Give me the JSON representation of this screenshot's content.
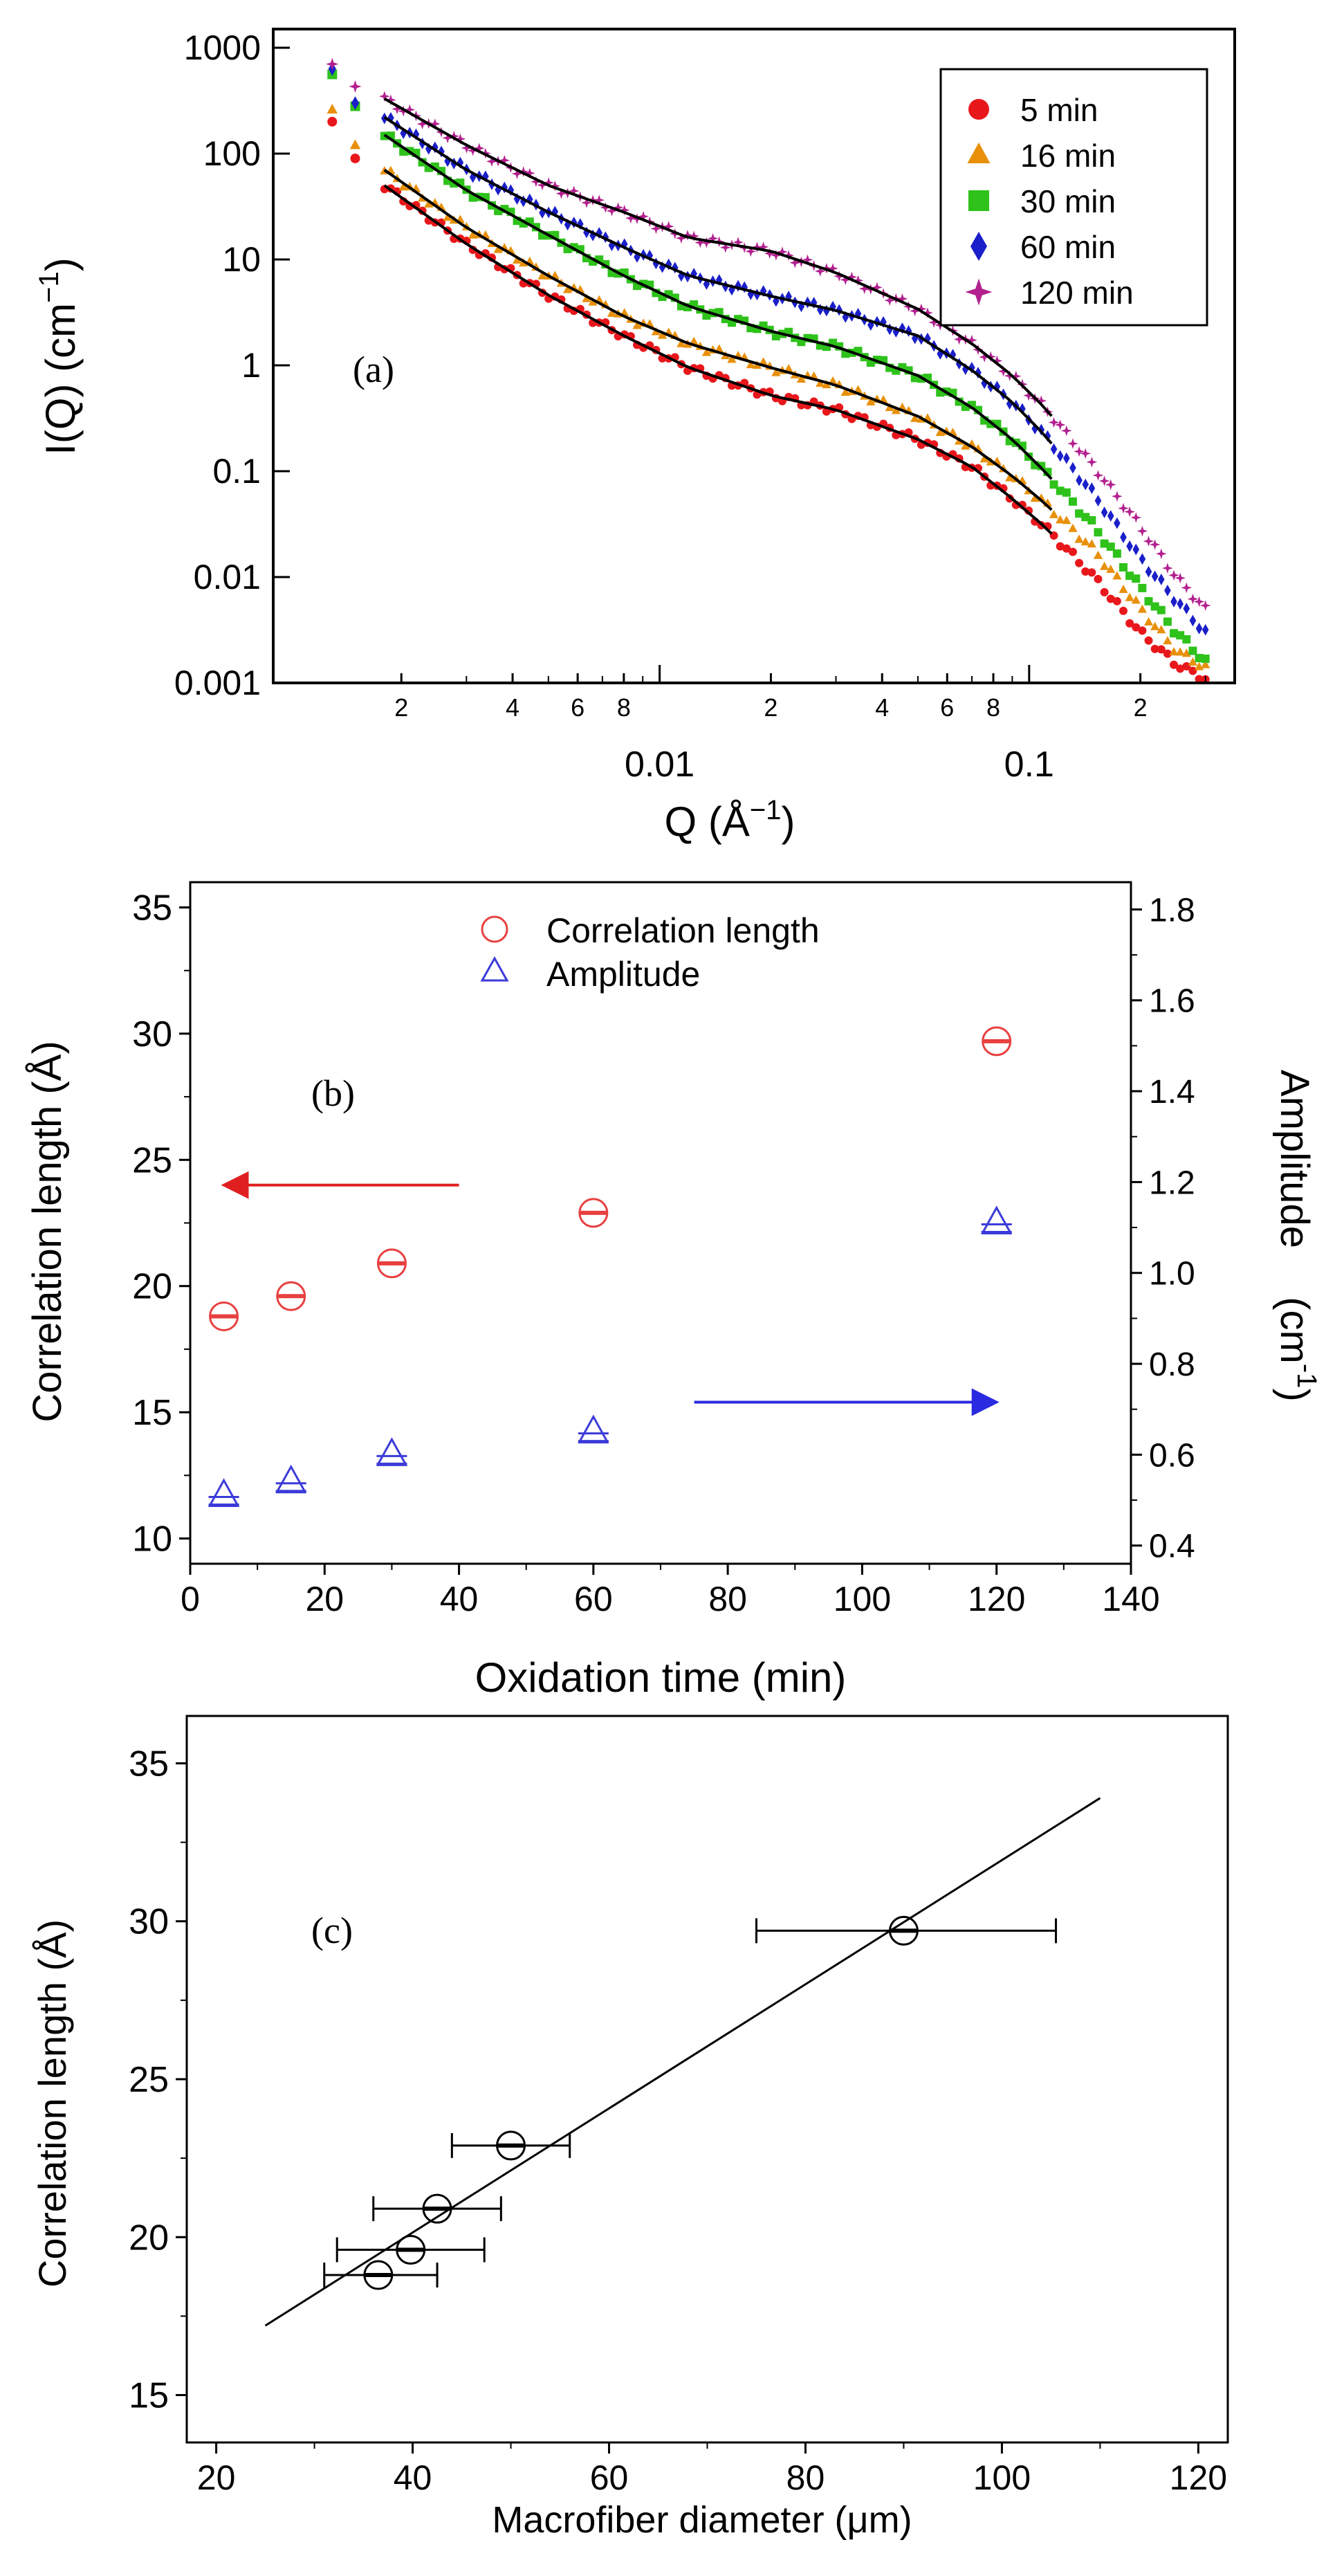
{
  "chart_data": [
    {
      "panel_label": "(a)",
      "type": "scatter",
      "xscale": "log",
      "yscale": "log",
      "xlabel": "Q (Å",
      "xlabel_sup": "−1",
      "xlabel_close": ")",
      "ylabel": "I(Q) (cm",
      "ylabel_sup": "−1",
      "ylabel_close": ")",
      "xlim": [
        0.0009,
        0.36
      ],
      "ylim": [
        0.001,
        1500
      ],
      "x_major_ticks": [
        {
          "value": 0.01,
          "label": "0.01"
        },
        {
          "value": 0.1,
          "label": "0.1"
        }
      ],
      "x_minor_ticks": [
        {
          "value": 0.002,
          "label": "2"
        },
        {
          "value": 0.004,
          "label": "4"
        },
        {
          "value": 0.006,
          "label": "6"
        },
        {
          "value": 0.008,
          "label": "8"
        },
        {
          "value": 0.02,
          "label": "2"
        },
        {
          "value": 0.04,
          "label": "4"
        },
        {
          "value": 0.06,
          "label": "6"
        },
        {
          "value": 0.08,
          "label": "8"
        },
        {
          "value": 0.2,
          "label": "2"
        }
      ],
      "y_ticks": [
        {
          "value": 1000,
          "label": "1000"
        },
        {
          "value": 100,
          "label": "100"
        },
        {
          "value": 10,
          "label": "10"
        },
        {
          "value": 1,
          "label": "1"
        },
        {
          "value": 0.1,
          "label": "0.1"
        },
        {
          "value": 0.01,
          "label": "0.01"
        },
        {
          "value": 0.001,
          "label": "0.001"
        }
      ],
      "legend_position": "top-right",
      "fit_range": [
        0.0018,
        0.115
      ],
      "series": [
        {
          "name": "5 min",
          "marker": "circle",
          "color": "#e8171b",
          "data": [
            [
              0.0013,
              200
            ],
            [
              0.0015,
              90
            ],
            [
              0.0018,
              50
            ],
            [
              0.003,
              14
            ],
            [
              0.005,
              4.6
            ],
            [
              0.008,
              1.9
            ],
            [
              0.012,
              0.95
            ],
            [
              0.02,
              0.52
            ],
            [
              0.03,
              0.38
            ],
            [
              0.05,
              0.2
            ],
            [
              0.07,
              0.11
            ],
            [
              0.09,
              0.055
            ],
            [
              0.11,
              0.03
            ],
            [
              0.15,
              0.01
            ],
            [
              0.2,
              0.003
            ],
            [
              0.25,
              0.0015
            ],
            [
              0.3,
              0.0011
            ]
          ]
        },
        {
          "name": "16 min",
          "marker": "triangle",
          "color": "#e8900a",
          "data": [
            [
              0.0013,
              260
            ],
            [
              0.0015,
              120
            ],
            [
              0.0018,
              70
            ],
            [
              0.003,
              20
            ],
            [
              0.005,
              7
            ],
            [
              0.008,
              2.9
            ],
            [
              0.012,
              1.6
            ],
            [
              0.02,
              0.95
            ],
            [
              0.03,
              0.65
            ],
            [
              0.05,
              0.33
            ],
            [
              0.07,
              0.17
            ],
            [
              0.09,
              0.09
            ],
            [
              0.11,
              0.05
            ],
            [
              0.15,
              0.018
            ],
            [
              0.2,
              0.005
            ],
            [
              0.25,
              0.002
            ],
            [
              0.3,
              0.0014
            ]
          ]
        },
        {
          "name": "30 min",
          "marker": "square",
          "color": "#2ec21b",
          "data": [
            [
              0.0013,
              560
            ],
            [
              0.0015,
              280
            ],
            [
              0.0018,
              150
            ],
            [
              0.003,
              45
            ],
            [
              0.005,
              17
            ],
            [
              0.008,
              7
            ],
            [
              0.012,
              3.6
            ],
            [
              0.02,
              2.1
            ],
            [
              0.03,
              1.5
            ],
            [
              0.05,
              0.8
            ],
            [
              0.07,
              0.4
            ],
            [
              0.09,
              0.2
            ],
            [
              0.11,
              0.1
            ],
            [
              0.15,
              0.03
            ],
            [
              0.2,
              0.008
            ],
            [
              0.25,
              0.003
            ],
            [
              0.3,
              0.0016
            ]
          ]
        },
        {
          "name": "60 min",
          "marker": "diamond",
          "color": "#1a1fc9",
          "data": [
            [
              0.0013,
              630
            ],
            [
              0.0015,
              300
            ],
            [
              0.0018,
              220
            ],
            [
              0.003,
              70
            ],
            [
              0.005,
              28
            ],
            [
              0.008,
              13
            ],
            [
              0.012,
              7
            ],
            [
              0.02,
              4.5
            ],
            [
              0.03,
              3.3
            ],
            [
              0.05,
              1.9
            ],
            [
              0.07,
              0.9
            ],
            [
              0.09,
              0.45
            ],
            [
              0.11,
              0.22
            ],
            [
              0.15,
              0.06
            ],
            [
              0.2,
              0.015
            ],
            [
              0.25,
              0.006
            ],
            [
              0.3,
              0.003
            ]
          ]
        },
        {
          "name": "120 min",
          "marker": "star",
          "color": "#b3208f",
          "data": [
            [
              0.0013,
              700
            ],
            [
              0.0015,
              430
            ],
            [
              0.0018,
              330
            ],
            [
              0.003,
              120
            ],
            [
              0.005,
              50
            ],
            [
              0.008,
              28
            ],
            [
              0.012,
              16
            ],
            [
              0.02,
              12
            ],
            [
              0.03,
              7.5
            ],
            [
              0.05,
              3.4
            ],
            [
              0.07,
              1.6
            ],
            [
              0.09,
              0.8
            ],
            [
              0.11,
              0.4
            ],
            [
              0.15,
              0.11
            ],
            [
              0.2,
              0.03
            ],
            [
              0.25,
              0.01
            ],
            [
              0.3,
              0.005
            ]
          ]
        }
      ]
    },
    {
      "panel_label": "(b)",
      "type": "scatter",
      "xlabel": "Oxidation time (min)",
      "ylabel_left": "Correlation length (Å)",
      "ylabel_right": "Amplitude",
      "ylabel_right_unit": "(cm",
      "ylabel_right_unit_sup": "-1",
      "ylabel_right_unit_close": ")",
      "xlim": [
        0,
        140
      ],
      "ylim_left": [
        9,
        36
      ],
      "ylim_right": [
        0.36,
        1.86
      ],
      "x_ticks": [
        0,
        20,
        40,
        60,
        80,
        100,
        120,
        140
      ],
      "y_left_ticks": [
        10,
        15,
        20,
        25,
        30,
        35
      ],
      "y_right_ticks": [
        "0.4",
        "0.6",
        "0.8",
        "1.0",
        "1.2",
        "1.4",
        "1.6",
        "1.8"
      ],
      "legend_position": "top-center",
      "series": [
        {
          "name": "Correlation length",
          "axis": "left",
          "marker": "circle",
          "color": "#e84040",
          "x": [
            5,
            15,
            30,
            60,
            120
          ],
          "y": [
            18.8,
            19.6,
            20.9,
            22.9,
            29.7
          ]
        },
        {
          "name": "Amplitude",
          "axis": "right",
          "marker": "triangle",
          "color": "#3b3bd9",
          "x": [
            5,
            15,
            30,
            60,
            120
          ],
          "y": [
            0.51,
            0.54,
            0.6,
            0.65,
            1.11
          ]
        }
      ],
      "annotations": [
        {
          "kind": "arrow",
          "direction": "left",
          "points_to": "left axis",
          "color": "#e02020",
          "from": [
            40,
            24
          ],
          "to": [
            5,
            24
          ]
        },
        {
          "kind": "arrow",
          "direction": "right",
          "points_to": "right axis",
          "color": "#2a2ae0",
          "from": [
            75,
            15.4
          ],
          "to": [
            120,
            15.4
          ]
        }
      ]
    },
    {
      "panel_label": "(c)",
      "type": "scatter",
      "xlabel": "Macrofiber diameter (μm)",
      "ylabel": "Correlation length (Å)",
      "xlim": [
        17,
        123
      ],
      "ylim": [
        13.5,
        36.5
      ],
      "x_ticks": [
        20,
        40,
        60,
        80,
        100,
        120
      ],
      "y_ticks": [
        15,
        20,
        25,
        30,
        35
      ],
      "points": [
        {
          "x": 36.5,
          "y": 18.8,
          "xerr_low": 5.5,
          "xerr_high": 6.0
        },
        {
          "x": 39.8,
          "y": 19.6,
          "xerr_low": 7.5,
          "xerr_high": 7.5
        },
        {
          "x": 42.5,
          "y": 20.9,
          "xerr_low": 6.5,
          "xerr_high": 6.5
        },
        {
          "x": 50,
          "y": 22.9,
          "xerr_low": 6.0,
          "xerr_high": 6.0
        },
        {
          "x": 90,
          "y": 29.7,
          "xerr_low": 15.0,
          "xerr_high": 15.5
        }
      ],
      "fit_line": {
        "x": [
          25,
          110
        ],
        "y": [
          17.2,
          33.9
        ]
      }
    }
  ]
}
